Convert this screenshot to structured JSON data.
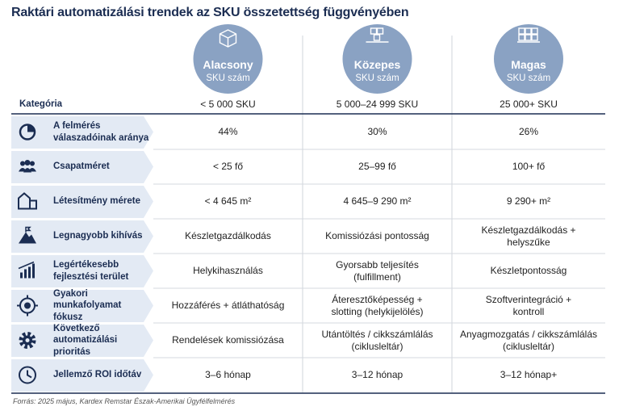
{
  "title": "Raktári automatizálási trendek az SKU összetettség függvényében",
  "category_header": "Kategória",
  "columns": [
    {
      "title": "Alacsony",
      "subtitle": "SKU szám",
      "range": "< 5 000 SKU"
    },
    {
      "title": "Közepes",
      "subtitle": "SKU szám",
      "range": "5 000–24 999 SKU"
    },
    {
      "title": "Magas",
      "subtitle": "SKU szám",
      "range": "25 000+ SKU"
    }
  ],
  "rows": [
    {
      "label": "A felmérés\nválaszadóinak aránya",
      "cells": [
        "44%",
        "30%",
        "26%"
      ]
    },
    {
      "label": "Csapatméret",
      "cells": [
        "< 25 fő",
        "25–99 fő",
        "100+ fő"
      ]
    },
    {
      "label": "Létesítmény mérete",
      "cells": [
        "< 4 645 m²",
        "4 645–9 290 m²",
        "9 290+ m²"
      ]
    },
    {
      "label": "Legnagyobb kihívás",
      "cells": [
        "Készletgazdálkodás",
        "Komissiózási pontosság",
        "Készletgazdálkodás +\nhelyszűke"
      ]
    },
    {
      "label": "Legértékesebb\nfejlesztési terület",
      "cells": [
        "Helykihasználás",
        "Gyorsabb teljesítés\n(fulfillment)",
        "Készletpontosság"
      ]
    },
    {
      "label": "Gyakori munkafolyamat\nfókusz",
      "cells": [
        "Hozzáférés + átláthatóság",
        "Áteresztőképesség +\nslotting (helykijelölés)",
        "Szoftverintegráció +\nkontroll"
      ]
    },
    {
      "label": "Következő automatizálási\nprioritás",
      "cells": [
        "Rendelések komissiózása",
        "Utántöltés / cikkszámlálás\n(ciklusleltár)",
        "Anyagmozgatás / cikkszámlálás\n(ciklusleltár)"
      ]
    },
    {
      "label": "Jellemző ROI időtáv",
      "cells": [
        "3–6 hónap",
        "3–12 hónap",
        "3–12 hónap+"
      ]
    }
  ],
  "source": "Forrás: 2025 május, Kardex Remstar Észak-Amerikai Ügyfélfelmérés"
}
